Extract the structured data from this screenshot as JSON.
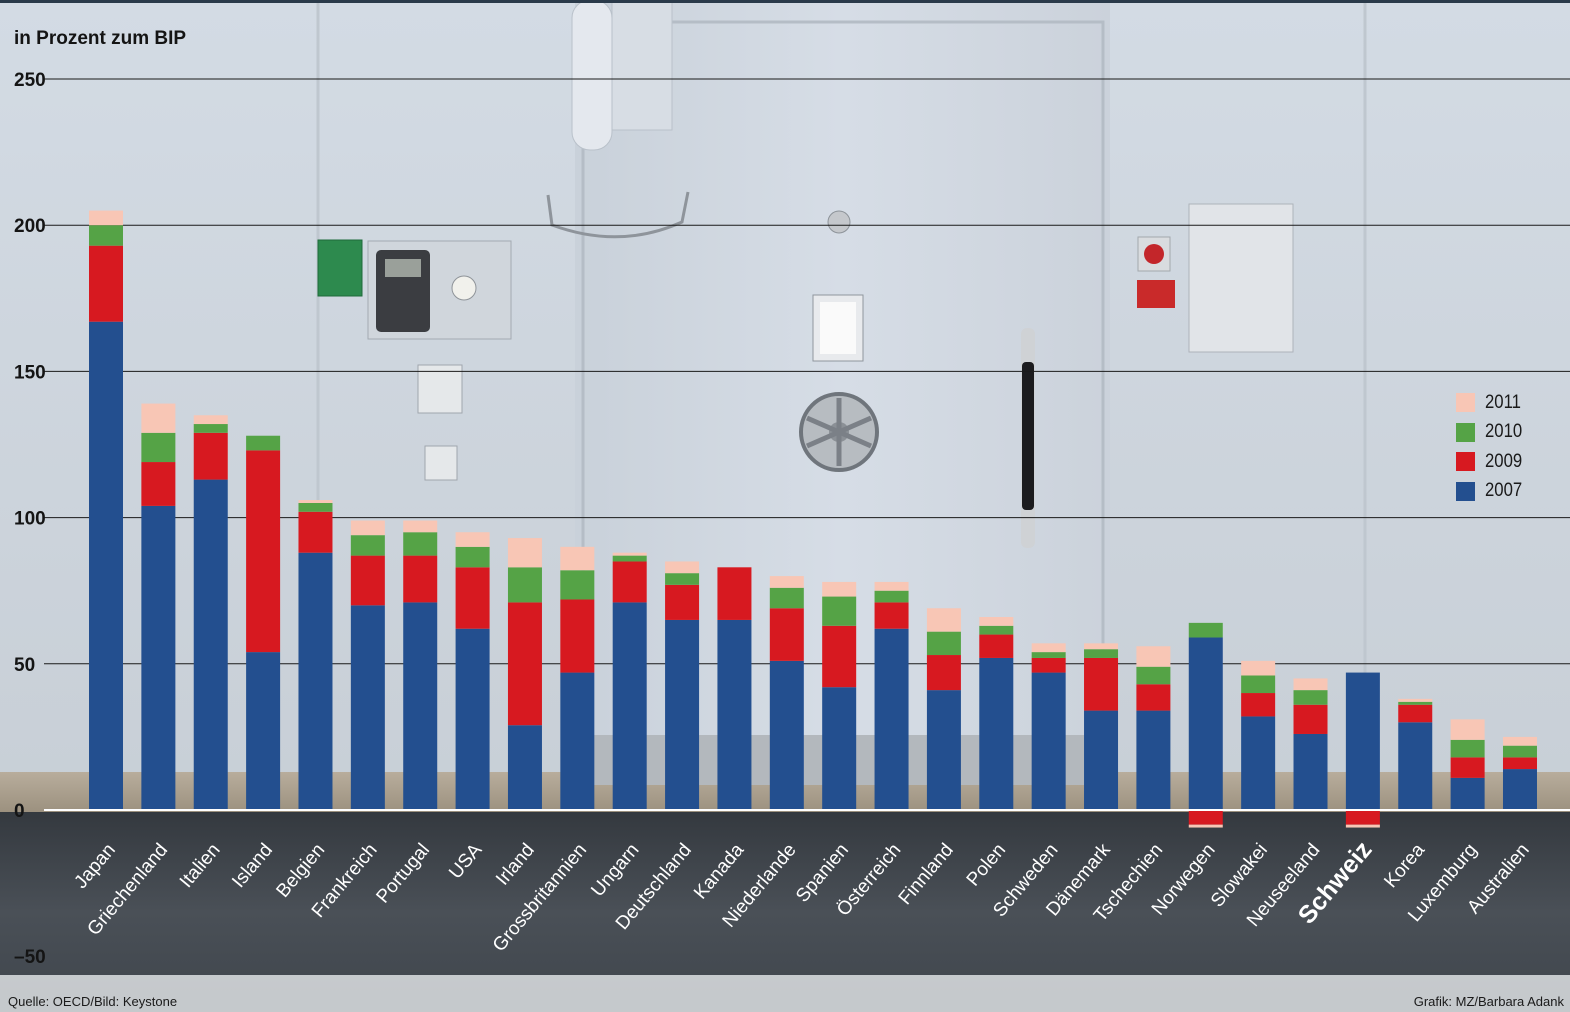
{
  "chart_data": {
    "type": "bar",
    "stacked": true,
    "ylabel": "in Prozent zum BIP",
    "ylim": [
      -50,
      250
    ],
    "yticks": [
      250,
      200,
      150,
      100,
      50,
      0,
      -50
    ],
    "ytick_labels": [
      "250",
      "200",
      "150",
      "100",
      "50",
      "0",
      "–50"
    ],
    "grid": true,
    "legend_position": "right",
    "highlight_category": "Schweiz",
    "categories": [
      "Japan",
      "Griechenland",
      "Italien",
      "Island",
      "Belgien",
      "Frankreich",
      "Portugal",
      "USA",
      "Irland",
      "Grossbritannien",
      "Ungarn",
      "Deutschland",
      "Kanada",
      "Niederlande",
      "Spanien",
      "Österreich",
      "Finnland",
      "Polen",
      "Schweden",
      "Dänemark",
      "Tschechien",
      "Norwegen",
      "Slowakei",
      "Neuseeland",
      "Schweiz",
      "Korea",
      "Luxemburg",
      "Australien"
    ],
    "series": [
      {
        "name": "2007",
        "color": "#234f8f",
        "values": [
          167,
          104,
          113,
          54,
          88,
          70,
          71,
          62,
          29,
          47,
          71,
          65,
          65,
          51,
          42,
          62,
          41,
          52,
          47,
          34,
          34,
          59,
          32,
          26,
          47,
          30,
          11,
          14
        ]
      },
      {
        "name": "2009",
        "color": "#d71920",
        "values": [
          26,
          15,
          16,
          69,
          14,
          17,
          16,
          21,
          42,
          25,
          14,
          12,
          18,
          18,
          21,
          9,
          12,
          8,
          5,
          18,
          9,
          -5,
          8,
          10,
          -5,
          6,
          7,
          4
        ]
      },
      {
        "name": "2010",
        "color": "#55a346",
        "values": [
          7,
          10,
          3,
          5,
          3,
          7,
          8,
          7,
          12,
          10,
          2,
          4,
          0,
          7,
          10,
          4,
          8,
          3,
          2,
          3,
          6,
          5,
          6,
          5,
          0,
          1,
          6,
          4
        ]
      },
      {
        "name": "2011",
        "color": "#f8c6b5",
        "values": [
          5,
          10,
          3,
          0,
          1,
          5,
          4,
          5,
          10,
          8,
          1,
          4,
          0,
          4,
          5,
          3,
          8,
          3,
          3,
          2,
          7,
          -1,
          5,
          4,
          -1,
          1,
          7,
          3
        ]
      }
    ],
    "legend": [
      "2011",
      "2010",
      "2009",
      "2007"
    ]
  },
  "source": "Quelle: OECD/Bild: Keystone",
  "credit": "Grafik: MZ/Barbara Adank"
}
